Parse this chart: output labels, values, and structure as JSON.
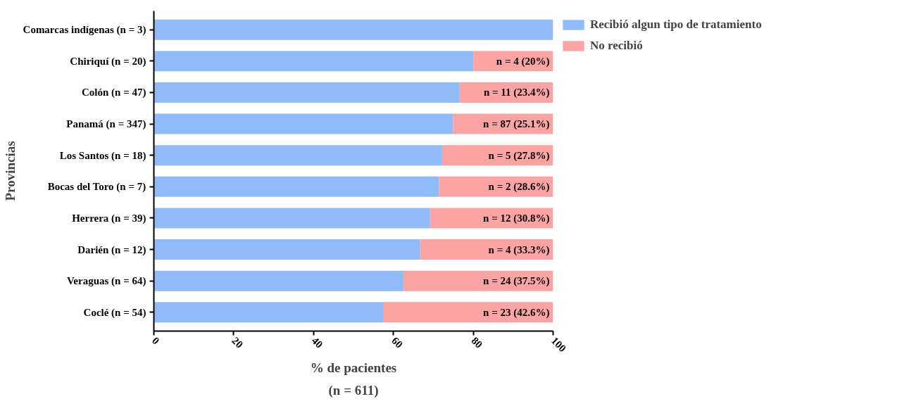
{
  "chart_data": {
    "type": "bar",
    "orientation": "horizontal",
    "stacked": true,
    "categories": [
      "Comarcas indígenas (n = 3)",
      "Chiriquí (n = 20)",
      "Colón (n = 47)",
      "Panamá (n = 347)",
      "Los Santos (n = 18)",
      "Bocas del Toro (n = 7)",
      "Herrera (n = 39)",
      "Darién (n = 12)",
      "Veraguas (n = 64)",
      "Coclé (n = 54)"
    ],
    "series": [
      {
        "name": "Recibió algun tipo de tratamiento",
        "color": "#8fbcf8",
        "values": [
          100,
          80,
          76.6,
          74.9,
          72.2,
          71.4,
          69.2,
          66.7,
          62.5,
          57.4
        ]
      },
      {
        "name": "No recibió",
        "color": "#fca3a3",
        "values": [
          0,
          20,
          23.4,
          25.1,
          27.8,
          28.6,
          30.8,
          33.3,
          37.5,
          42.6
        ],
        "value_labels": [
          null,
          "n = 4 (20%)",
          "n = 11 (23.4%)",
          "n = 87 (25.1%)",
          "n = 5 (27.8%)",
          "n = 2 (28.6%)",
          "n = 12 (30.8%)",
          "n = 4 (33.3%)",
          "n = 24 (37.5%)",
          "n = 23 (42.6%)"
        ]
      }
    ],
    "xlim": [
      0,
      100
    ],
    "xticks": [
      0,
      20,
      40,
      60,
      80,
      100
    ],
    "xlabel": "% de pacientes",
    "ylabel": "Provincias",
    "annotations": [
      "(n = 611)"
    ],
    "legend": "top right",
    "grid": false
  }
}
